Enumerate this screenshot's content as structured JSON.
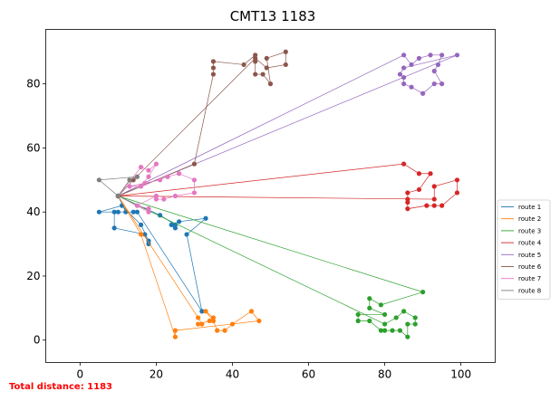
{
  "chart_data": {
    "type": "line",
    "title": "CMT13 1183",
    "xlabel": "",
    "ylabel": "",
    "xlim": [
      -9,
      109
    ],
    "ylim": [
      -7,
      97
    ],
    "xticks": [
      0,
      20,
      40,
      60,
      80,
      100
    ],
    "yticks": [
      0,
      20,
      40,
      60,
      80
    ],
    "grid": false,
    "legend_position": "center-right",
    "depot": [
      10,
      45
    ],
    "series": [
      {
        "name": "route 1",
        "color": "#1f77b4",
        "points": [
          [
            10,
            45
          ],
          [
            21,
            39
          ],
          [
            25,
            36
          ],
          [
            25,
            35
          ],
          [
            24,
            36
          ],
          [
            26,
            37
          ],
          [
            33,
            38
          ],
          [
            28,
            33
          ],
          [
            32,
            9
          ],
          [
            15,
            40
          ],
          [
            14,
            40
          ],
          [
            10,
            40
          ],
          [
            5,
            40
          ],
          [
            11,
            42
          ],
          [
            16,
            36
          ],
          [
            18,
            31
          ],
          [
            18,
            30
          ],
          [
            17,
            33
          ],
          [
            9,
            35
          ],
          [
            9,
            40
          ],
          [
            12,
            40
          ],
          [
            10,
            45
          ]
        ]
      },
      {
        "name": "route 2",
        "color": "#ff7f0e",
        "points": [
          [
            10,
            45
          ],
          [
            31,
            7
          ],
          [
            32,
            5
          ],
          [
            31,
            5
          ],
          [
            34,
            6
          ],
          [
            35,
            7
          ],
          [
            33,
            9
          ],
          [
            35,
            6
          ],
          [
            36,
            3
          ],
          [
            38,
            3
          ],
          [
            40,
            5
          ],
          [
            45,
            9
          ],
          [
            47,
            6
          ],
          [
            25,
            3
          ],
          [
            25,
            1
          ],
          [
            16,
            33
          ],
          [
            10,
            45
          ]
        ]
      },
      {
        "name": "route 3",
        "color": "#2ca02c",
        "points": [
          [
            10,
            45
          ],
          [
            90,
            15
          ],
          [
            79,
            11
          ],
          [
            76,
            13
          ],
          [
            76,
            10
          ],
          [
            80,
            8
          ],
          [
            73,
            8
          ],
          [
            73,
            6
          ],
          [
            76,
            6
          ],
          [
            79,
            3
          ],
          [
            80,
            3
          ],
          [
            82,
            3
          ],
          [
            84,
            3
          ],
          [
            86,
            1
          ],
          [
            86,
            5
          ],
          [
            88,
            5
          ],
          [
            88,
            7
          ],
          [
            85,
            9
          ],
          [
            83,
            7
          ],
          [
            80,
            5
          ],
          [
            10,
            45
          ]
        ]
      },
      {
        "name": "route 4",
        "color": "#d62728",
        "points": [
          [
            10,
            45
          ],
          [
            85,
            55
          ],
          [
            89,
            52
          ],
          [
            92,
            52
          ],
          [
            89,
            47
          ],
          [
            86,
            46
          ],
          [
            86,
            44
          ],
          [
            86,
            43
          ],
          [
            86,
            41
          ],
          [
            91,
            42
          ],
          [
            93,
            42
          ],
          [
            95,
            42
          ],
          [
            99,
            46
          ],
          [
            99,
            50
          ],
          [
            93,
            48
          ],
          [
            93,
            44
          ],
          [
            10,
            45
          ]
        ]
      },
      {
        "name": "route 5",
        "color": "#9467bd",
        "points": [
          [
            10,
            45
          ],
          [
            85,
            89
          ],
          [
            87,
            86
          ],
          [
            89,
            88
          ],
          [
            92,
            89
          ],
          [
            95,
            89
          ],
          [
            94,
            86
          ],
          [
            93,
            84
          ],
          [
            95,
            80
          ],
          [
            93,
            80
          ],
          [
            90,
            77
          ],
          [
            87,
            79
          ],
          [
            85,
            80
          ],
          [
            85,
            82
          ],
          [
            84,
            83
          ],
          [
            85,
            85
          ],
          [
            99,
            89
          ],
          [
            10,
            45
          ]
        ]
      },
      {
        "name": "route 6",
        "color": "#8c564b",
        "points": [
          [
            10,
            45
          ],
          [
            30,
            55
          ],
          [
            35,
            83
          ],
          [
            35,
            85
          ],
          [
            35,
            87
          ],
          [
            43,
            86
          ],
          [
            46,
            89
          ],
          [
            46,
            87
          ],
          [
            46,
            83
          ],
          [
            48,
            83
          ],
          [
            50,
            80
          ],
          [
            49,
            88
          ],
          [
            54,
            90
          ],
          [
            54,
            86
          ],
          [
            49,
            85
          ],
          [
            46,
            88
          ],
          [
            14,
            50
          ],
          [
            10,
            45
          ]
        ]
      },
      {
        "name": "route 7",
        "color": "#e377c2",
        "points": [
          [
            10,
            45
          ],
          [
            16,
            54
          ],
          [
            18,
            53
          ],
          [
            20,
            55
          ],
          [
            18,
            51
          ],
          [
            16,
            48
          ],
          [
            13,
            48
          ],
          [
            17,
            49
          ],
          [
            21,
            50
          ],
          [
            23,
            51
          ],
          [
            26,
            52
          ],
          [
            30,
            50
          ],
          [
            30,
            46
          ],
          [
            25,
            45
          ],
          [
            22,
            44
          ],
          [
            20,
            44
          ],
          [
            20,
            45
          ],
          [
            15,
            42
          ],
          [
            18,
            41
          ],
          [
            18,
            40
          ],
          [
            10,
            45
          ]
        ]
      },
      {
        "name": "route 8",
        "color": "#7f7f7f",
        "points": [
          [
            10,
            45
          ],
          [
            5,
            50
          ],
          [
            15,
            51
          ],
          [
            13,
            50
          ],
          [
            10,
            45
          ]
        ]
      }
    ],
    "annotation": "Total distance: 1183"
  }
}
